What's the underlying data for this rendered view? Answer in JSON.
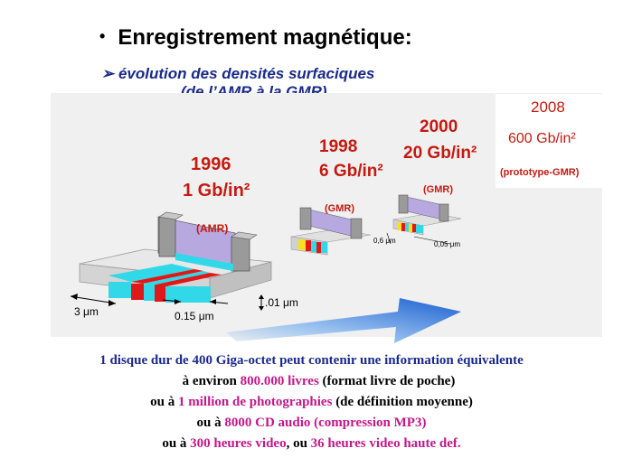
{
  "slide": {
    "bullet": "•",
    "title": "Enregistrement magnétique:",
    "subtitle_line1": "➢ évolution des densités  surfaciques",
    "subtitle_line2": "(de l’AMR à la GMR)"
  },
  "milestones": [
    {
      "year": "1996",
      "density": "1 Gb/in²",
      "tech": "(AMR)"
    },
    {
      "year": "1998",
      "density": "6 Gb/in²",
      "tech": "(GMR)"
    },
    {
      "year": "2000",
      "density": "20 Gb/in²",
      "tech": "(GMR)"
    },
    {
      "year": "2008",
      "density": "600 Gb/in²",
      "tech": "(prototype-GMR)"
    }
  ],
  "measures": {
    "track_width": "3 μm",
    "bit_length": "0.15 μm",
    "thickness": ".01 μm",
    "track_width_2000": "0,6 μm",
    "bit_length_2000": "0,05 μm"
  },
  "text": {
    "line1": "1 disque dur de 400 Giga-octet peut contenir une information équivalente",
    "line2_a": "à environ  ",
    "line2_hl": "800.000 livres",
    "line2_b": " (format livre de poche)",
    "line3_a": "ou à ",
    "line3_hl": "1 million de photographies",
    "line3_b": " (de définition moyenne)",
    "line4_a": "ou à ",
    "line4_hl": "8000 CD audio (compression MP3)",
    "line5_a": "ou à ",
    "line5_hl1": "300 heures video",
    "line5_b": ", ou ",
    "line5_hl2": "36 heures video haute def."
  },
  "colors": {
    "title": "#000000",
    "subtitle": "#1a2a8a",
    "milestone_text": "#c41a10",
    "highlight": "#c2188a",
    "panel_bg": "#f0f0f0",
    "arrow": "#2a6fd6",
    "stripe_cyan": "#30d8e8",
    "stripe_red": "#e01818",
    "stripe_yellow": "#f8e020",
    "head_purple": "#b8a8e0"
  }
}
